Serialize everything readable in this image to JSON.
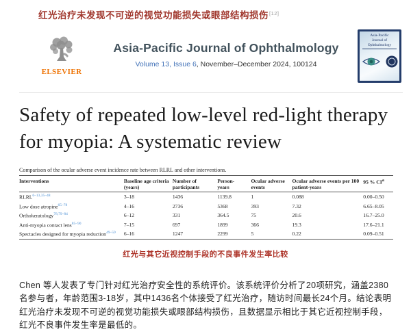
{
  "top": {
    "heading": "红光治疗未发现不可逆的视觉功能损失或眼部结构损伤",
    "ref_marker": "[12]"
  },
  "header": {
    "publisher": "ELSEVIER",
    "journal_title": "Asia-Pacific Journal of Ophthalmology",
    "volume_link": "Volume 13, Issue 6",
    "issue_rest": ", November–December 2024, 100124",
    "cover_title_line1": "Asia-Pacific",
    "cover_title_line2": "Journal of",
    "cover_title_line3": "Ophthalmology"
  },
  "article": {
    "title": "Safety of repeated low-level red-light therapy for myopia: A systematic review"
  },
  "table": {
    "caption": "Comparison of the ocular adverse event incidence rate between RLRL and other interventions.",
    "headers": [
      "Interventions",
      "Baseline age criteria\n(years)",
      "Number of\nparticipants",
      "Person-\nyears",
      "Ocular adverse\nevents",
      "Ocular adverse events per 100\npatient-years",
      "95 % CI"
    ],
    "ci_note": "a",
    "rows": [
      {
        "intervention": "RLRL",
        "refs": "6–13,35–48",
        "age": "3–18",
        "participants": "1436",
        "person_years": "1139.8",
        "events": "1",
        "rate": "0.088",
        "ci": "0.00–0.50"
      },
      {
        "intervention": "Low dose atropine",
        "refs": "65–78",
        "age": "4–16",
        "participants": "2736",
        "person_years": "5368",
        "events": "393",
        "rate": "7.32",
        "ci": "6.65–8.05"
      },
      {
        "intervention": "Orthokeratology",
        "refs": "78,79–84",
        "age": "6–12",
        "participants": "331",
        "person_years": "364.5",
        "events": "75",
        "rate": "20.6",
        "ci": "16.7–25.0"
      },
      {
        "intervention": "Anti-myopia contact lens",
        "refs": "85–90",
        "age": "7–15",
        "participants": "697",
        "person_years": "1899",
        "events": "366",
        "rate": "19.3",
        "ci": "17.6–21.1"
      },
      {
        "intervention": "Spectacles designed for myopia reduction",
        "refs": "49–59",
        "age": "6–16",
        "participants": "1247",
        "person_years": "2299",
        "events": "5",
        "rate": "0.22",
        "ci": "0.09–0.51"
      }
    ],
    "caption_cn": "红光与其它近视控制手段的不良事件发生率比较"
  },
  "body_text": "Chen 等人发表了专门针对红光治疗安全性的系统评价。该系统评价分析了20项研究，涵盖2380名参与者，年龄范围3-18岁，其中1436名个体接受了红光治疗，随访时间最长24个月。结论表明红光治疗未发现不可逆的视觉功能损失或眼部结构损伤，且数据显示相比于其它近视控制手段，红光不良事件发生率是最低的。",
  "colors": {
    "heading_red": "#a0362c",
    "caption_red": "#ad3328",
    "link_blue": "#4272b8",
    "reference_blue": "#4a8fd4",
    "elsevier_orange": "#ee7203",
    "journal_title_slate": "#42525c",
    "cover_navy": "#243d6b",
    "body_text": "#1f1f1f"
  }
}
